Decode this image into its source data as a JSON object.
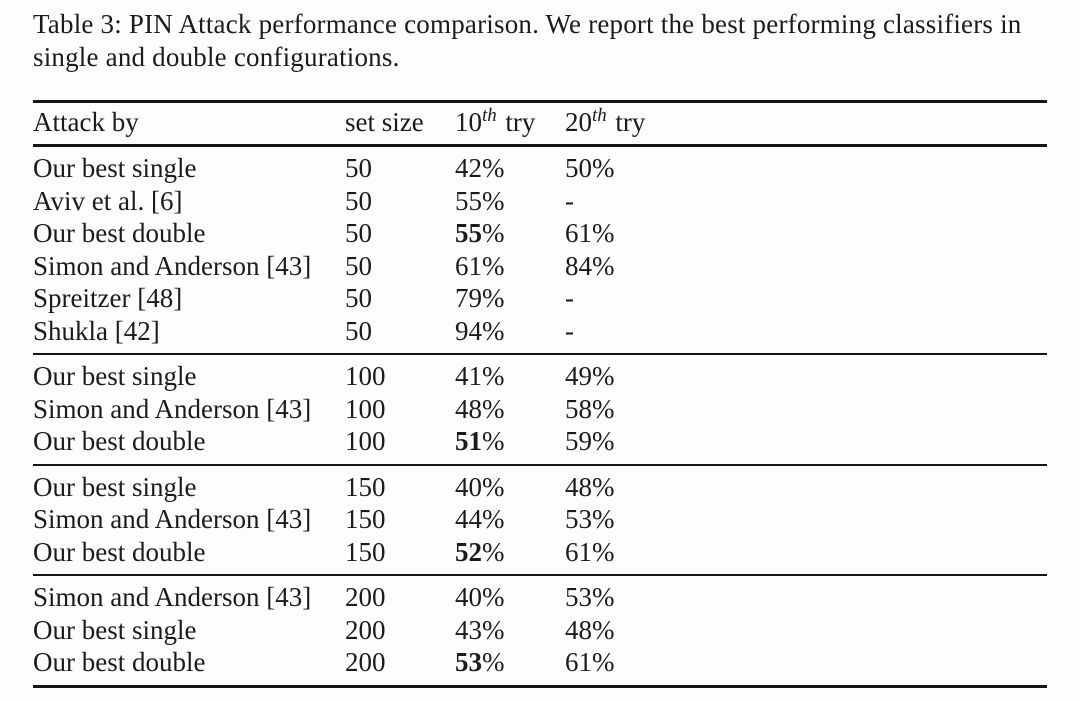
{
  "caption": "Table 3: PIN Attack performance comparison. We report the best performing classifiers in single and double configurations.",
  "colors": {
    "text": "#1b1b1b",
    "background": "#fdfdfd",
    "rule": "#161616"
  },
  "table": {
    "header": {
      "attack_by": "Attack by",
      "set_size": "set size",
      "try10": {
        "base": "10",
        "sup": "th",
        "rest": "try"
      },
      "try20": {
        "base": "20",
        "sup": "th",
        "rest": "try"
      }
    },
    "groups": [
      {
        "rows": [
          {
            "attack": "Our best single",
            "set_size": "50",
            "try10": "42%",
            "try10_bold": false,
            "try20": "50%"
          },
          {
            "attack": "Aviv et al. [6]",
            "set_size": "50",
            "try10": "55%",
            "try10_bold": false,
            "try20": "-"
          },
          {
            "attack": "Our best double",
            "set_size": "50",
            "try10": "55%",
            "try10_bold": true,
            "try20": "61%"
          },
          {
            "attack": "Simon and Anderson [43]",
            "set_size": "50",
            "try10": "61%",
            "try10_bold": false,
            "try20": "84%"
          },
          {
            "attack": "Spreitzer [48]",
            "set_size": "50",
            "try10": "79%",
            "try10_bold": false,
            "try20": "-"
          },
          {
            "attack": "Shukla [42]",
            "set_size": "50",
            "try10": "94%",
            "try10_bold": false,
            "try20": "-"
          }
        ]
      },
      {
        "rows": [
          {
            "attack": "Our best single",
            "set_size": "100",
            "try10": "41%",
            "try10_bold": false,
            "try20": "49%"
          },
          {
            "attack": "Simon and Anderson [43]",
            "set_size": "100",
            "try10": "48%",
            "try10_bold": false,
            "try20": "58%"
          },
          {
            "attack": "Our best double",
            "set_size": "100",
            "try10": "51%",
            "try10_bold": true,
            "try20": "59%"
          }
        ]
      },
      {
        "rows": [
          {
            "attack": "Our best single",
            "set_size": "150",
            "try10": "40%",
            "try10_bold": false,
            "try20": "48%"
          },
          {
            "attack": "Simon and Anderson [43]",
            "set_size": "150",
            "try10": "44%",
            "try10_bold": false,
            "try20": "53%"
          },
          {
            "attack": "Our best double",
            "set_size": "150",
            "try10": "52%",
            "try10_bold": true,
            "try20": "61%"
          }
        ]
      },
      {
        "rows": [
          {
            "attack": "Simon and Anderson [43]",
            "set_size": "200",
            "try10": "40%",
            "try10_bold": false,
            "try20": "53%"
          },
          {
            "attack": "Our best single",
            "set_size": "200",
            "try10": "43%",
            "try10_bold": false,
            "try20": "48%"
          },
          {
            "attack": "Our best double",
            "set_size": "200",
            "try10": "53%",
            "try10_bold": true,
            "try20": "61%"
          }
        ]
      }
    ]
  }
}
